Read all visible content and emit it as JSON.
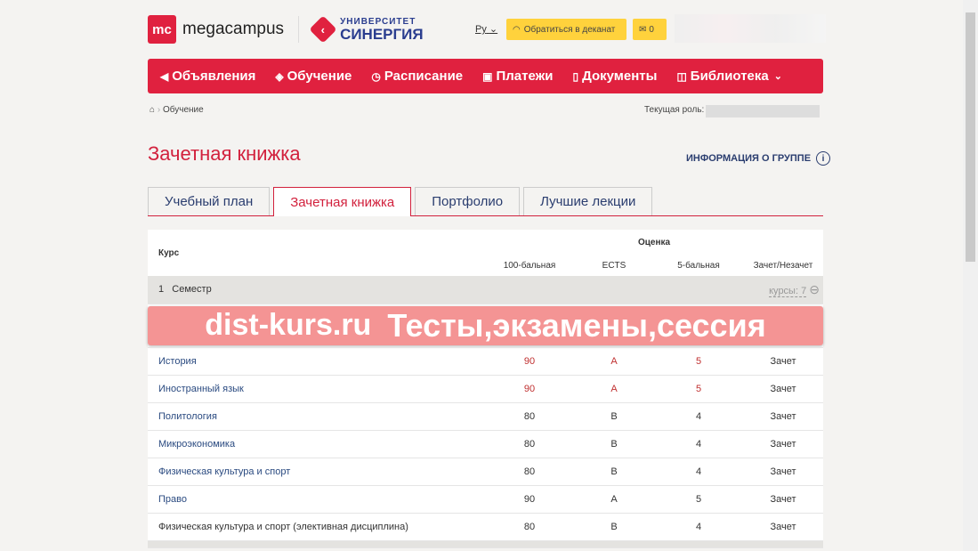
{
  "header": {
    "logo_mc": "mc",
    "logo_text": "megacampus",
    "synergy_top": "УНИВЕРСИТЕТ",
    "synergy_bottom": "СИНЕРГИЯ",
    "lang": "Ру",
    "dean_button": "Обратиться в деканат",
    "mail_count": "0"
  },
  "nav": [
    {
      "icon": "megaphone-icon",
      "label": "Объявления"
    },
    {
      "icon": "graduation-cap-icon",
      "label": "Обучение"
    },
    {
      "icon": "clock-icon",
      "label": "Расписание"
    },
    {
      "icon": "card-icon",
      "label": "Платежи"
    },
    {
      "icon": "document-icon",
      "label": "Документы"
    },
    {
      "icon": "book-icon",
      "label": "Библиотека"
    }
  ],
  "breadcrumb": {
    "current": "Обучение"
  },
  "role_label": "Текущая роль:",
  "page_title": "Зачетная книжка",
  "group_info": "ИНФОРМАЦИЯ О ГРУППЕ",
  "tabs": [
    "Учебный план",
    "Зачетная книжка",
    "Портфолио",
    "Лучшие лекции"
  ],
  "active_tab": 1,
  "table": {
    "course": "Курс",
    "grade": "Оценка",
    "cols": [
      "100-бальная",
      "ECTS",
      "5-бальная",
      "Зачет/Незачет"
    ],
    "semester": {
      "num": "1",
      "label": "Семестр",
      "count": "курсы: 7"
    },
    "rows": [
      [
        "История",
        "90",
        "A",
        "5",
        "Зачет"
      ],
      [
        "Иностранный язык",
        "90",
        "A",
        "5",
        "Зачет"
      ],
      [
        "Политология",
        "80",
        "B",
        "4",
        "Зачет"
      ],
      [
        "Микроэкономика",
        "80",
        "B",
        "4",
        "Зачет"
      ],
      [
        "Физическая культура и спорт",
        "80",
        "B",
        "4",
        "Зачет"
      ],
      [
        "Право",
        "90",
        "A",
        "5",
        "Зачет"
      ],
      [
        "Физическая культура и спорт (элективная дисциплина)",
        "80",
        "B",
        "4",
        "Зачет"
      ]
    ]
  },
  "watermark": {
    "line1": "dist-kurs.ru",
    "line2": "Тесты,экзамены,сессия"
  }
}
